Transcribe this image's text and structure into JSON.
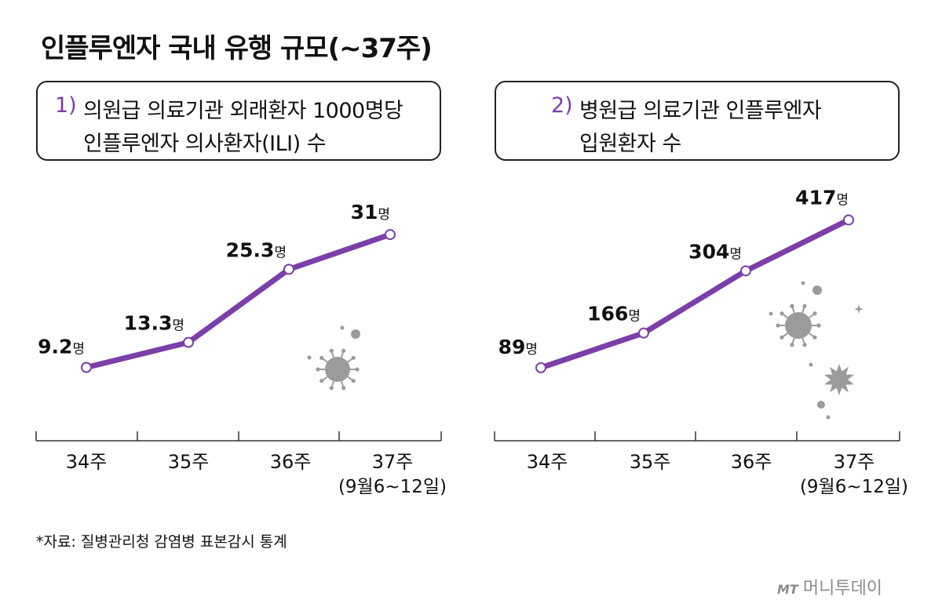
{
  "title": "인플루엔자 국내 유행 규모(~37주)",
  "panels": [
    {
      "number": "1)",
      "line1": "의원급 의료기관 외래환자 1000명당",
      "line2": "인플루엔자 의사환자(ILI) 수"
    },
    {
      "number": "2)",
      "line1": "병원급 의료기관 인플루엔자",
      "line2": "입원환자 수"
    }
  ],
  "chart_data": [
    {
      "type": "line",
      "title": "의원급 의료기관 외래환자 1000명당 인플루엔자 의사환자(ILI) 수",
      "categories": [
        "34주",
        "35주",
        "36주",
        "37주"
      ],
      "category_sublabels": [
        "",
        "",
        "",
        "(9월6~12일)"
      ],
      "values": [
        9.2,
        13.3,
        25.3,
        31
      ],
      "value_labels": [
        "9.2",
        "13.3",
        "25.3",
        "31"
      ],
      "unit": "명",
      "color": "#7b3fa8"
    },
    {
      "type": "line",
      "title": "병원급 의료기관 인플루엔자 입원환자 수",
      "categories": [
        "34주",
        "35주",
        "36주",
        "37주"
      ],
      "category_sublabels": [
        "",
        "",
        "",
        "(9월6~12일)"
      ],
      "values": [
        89,
        166,
        304,
        417
      ],
      "value_labels": [
        "89",
        "166",
        "304",
        "417"
      ],
      "unit": "명",
      "color": "#7b3fa8"
    }
  ],
  "source": "*자료: 질병관리청 감염병 표본감시 통계",
  "logo": {
    "mark": "MT",
    "name": "머니투데이"
  },
  "colors": {
    "accent": "#7b3fa8",
    "decoration": "#9b9b9b",
    "axis": "#333333"
  }
}
